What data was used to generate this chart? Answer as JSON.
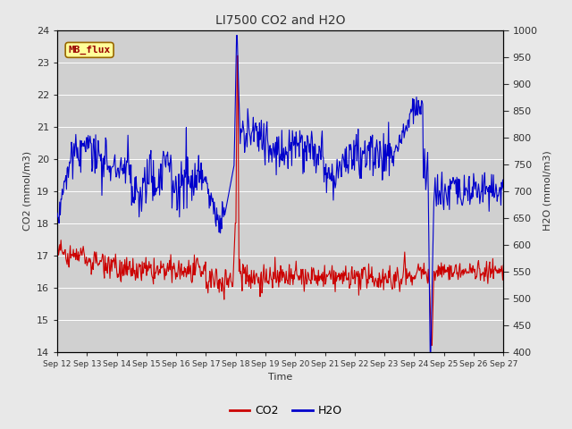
{
  "title": "LI7500 CO2 and H2O",
  "xlabel": "Time",
  "ylabel_left": "CO2 (mmol/m3)",
  "ylabel_right": "H2O (mmol/m3)",
  "ylim_left": [
    14.0,
    24.0
  ],
  "ylim_right": [
    400,
    1000
  ],
  "yticks_left": [
    14.0,
    15.0,
    16.0,
    17.0,
    18.0,
    19.0,
    20.0,
    21.0,
    22.0,
    23.0,
    24.0
  ],
  "yticks_right": [
    400,
    450,
    500,
    550,
    600,
    650,
    700,
    750,
    800,
    850,
    900,
    950,
    1000
  ],
  "xtick_labels": [
    "Sep 12",
    "Sep 13",
    "Sep 14",
    "Sep 15",
    "Sep 16",
    "Sep 17",
    "Sep 18",
    "Sep 19",
    "Sep 20",
    "Sep 21",
    "Sep 22",
    "Sep 23",
    "Sep 24",
    "Sep 25",
    "Sep 26",
    "Sep 27"
  ],
  "co2_color": "#cc0000",
  "h2o_color": "#0000cc",
  "fig_bg_color": "#e8e8e8",
  "plot_bg_color": "#d0d0d0",
  "grid_color": "#ffffff",
  "annotation_text": "MB_flux",
  "annotation_bg": "#ffff99",
  "annotation_border": "#996600",
  "annotation_text_color": "#990000",
  "title_fontsize": 10,
  "axis_label_fontsize": 8,
  "tick_fontsize": 8,
  "legend_fontsize": 9
}
